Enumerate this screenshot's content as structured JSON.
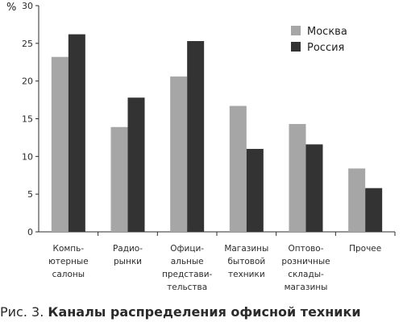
{
  "chart_data": {
    "type": "bar",
    "unit_label": "%",
    "ylim": [
      0,
      30
    ],
    "yticks": [
      0,
      5,
      10,
      15,
      20,
      25,
      30
    ],
    "grid": false,
    "legend_position": "top-right",
    "categories": [
      [
        "Компь-",
        "ютерные",
        "салоны"
      ],
      [
        "Радио-",
        "рынки"
      ],
      [
        "Офици-",
        "альные",
        "представи-",
        "тельства"
      ],
      [
        "Магазины",
        "бытовой",
        "техники"
      ],
      [
        "Оптово-",
        "розничные",
        "склады-",
        "магазины"
      ],
      [
        "Прочее"
      ]
    ],
    "series": [
      {
        "name": "Москва",
        "color": "#a6a6a6",
        "values": [
          23.2,
          13.9,
          20.6,
          16.7,
          14.3,
          8.4
        ]
      },
      {
        "name": "Россия",
        "color": "#333333",
        "values": [
          26.2,
          17.8,
          25.3,
          11.0,
          11.6,
          5.8
        ]
      }
    ]
  },
  "caption": {
    "prefix": "Рис. 3.",
    "title": "Каналы распределения офисной техники"
  }
}
